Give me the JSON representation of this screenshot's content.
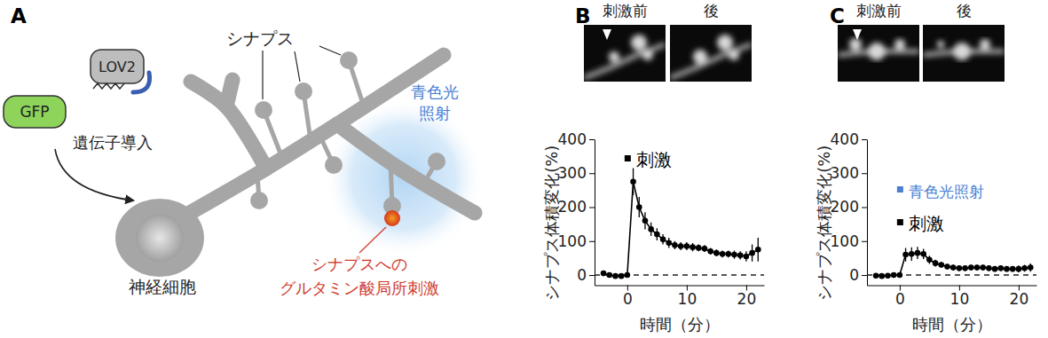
{
  "panel_labels": [
    "A",
    "B",
    "C"
  ],
  "diagram": {
    "gfp": "GFP",
    "lov2": "LOV2",
    "gene_transfer": "遺伝子導入",
    "synapse": "シナプス",
    "light": [
      "青色光",
      "照射"
    ],
    "stimulation": [
      "シナプスへの",
      "グルタミン酸局所刺激"
    ],
    "neuron": "神経細胞"
  },
  "images": [
    {
      "before": "刺激前",
      "after": "後"
    },
    {
      "before": "刺激前",
      "after": "後"
    }
  ],
  "chart_data": [
    {
      "type": "line",
      "x": [
        -4,
        -3,
        -2,
        -1,
        0,
        1,
        2,
        3,
        4,
        5,
        6,
        7,
        8,
        9,
        10,
        11,
        12,
        13,
        14,
        15,
        16,
        17,
        18,
        19,
        20,
        21,
        22
      ],
      "values": [
        5,
        0,
        -3,
        -3,
        0,
        275,
        200,
        160,
        135,
        120,
        105,
        95,
        88,
        85,
        85,
        82,
        80,
        78,
        70,
        65,
        62,
        62,
        60,
        58,
        55,
        65,
        75
      ],
      "errors": [
        5,
        5,
        5,
        5,
        5,
        40,
        30,
        25,
        20,
        18,
        15,
        15,
        12,
        12,
        12,
        12,
        10,
        10,
        10,
        10,
        10,
        10,
        12,
        12,
        15,
        25,
        35
      ],
      "color": "#000000",
      "marker": "circle",
      "xlim": [
        -5.5,
        23
      ],
      "ylim": [
        -30,
        400
      ],
      "xticks": [
        0,
        10,
        20
      ],
      "yticks": [
        0,
        100,
        200,
        300,
        400
      ],
      "x_label": "時間（分）",
      "y_label": "シナプス体積変化(%)",
      "baseline": 0,
      "annotations": [
        {
          "text": "刺激",
          "color": "#000000"
        }
      ]
    },
    {
      "type": "line",
      "x": [
        -4,
        -3,
        -2,
        -1,
        0,
        1,
        2,
        3,
        4,
        5,
        6,
        7,
        8,
        9,
        10,
        11,
        12,
        13,
        14,
        15,
        16,
        17,
        18,
        19,
        20,
        21,
        22
      ],
      "values": [
        -2,
        -3,
        -2,
        0,
        0,
        60,
        62,
        65,
        62,
        45,
        35,
        30,
        25,
        22,
        20,
        20,
        22,
        22,
        22,
        20,
        18,
        20,
        18,
        18,
        18,
        20,
        22
      ],
      "errors": [
        5,
        5,
        5,
        5,
        5,
        20,
        20,
        18,
        15,
        12,
        10,
        8,
        8,
        8,
        8,
        8,
        8,
        8,
        8,
        8,
        8,
        8,
        8,
        8,
        10,
        10,
        12
      ],
      "color": "#000000",
      "marker": "circle",
      "xlim": [
        -5.5,
        23
      ],
      "ylim": [
        -30,
        400
      ],
      "xticks": [
        0,
        10,
        20
      ],
      "yticks": [
        0,
        100,
        200,
        300,
        400
      ],
      "x_label": "時間（分）",
      "y_label": "シナプス体積変化(%)",
      "baseline": 0,
      "annotations": [
        {
          "text": "青色光照射",
          "color": "#4a7fd4"
        },
        {
          "text": "刺激",
          "color": "#000000"
        }
      ]
    }
  ]
}
